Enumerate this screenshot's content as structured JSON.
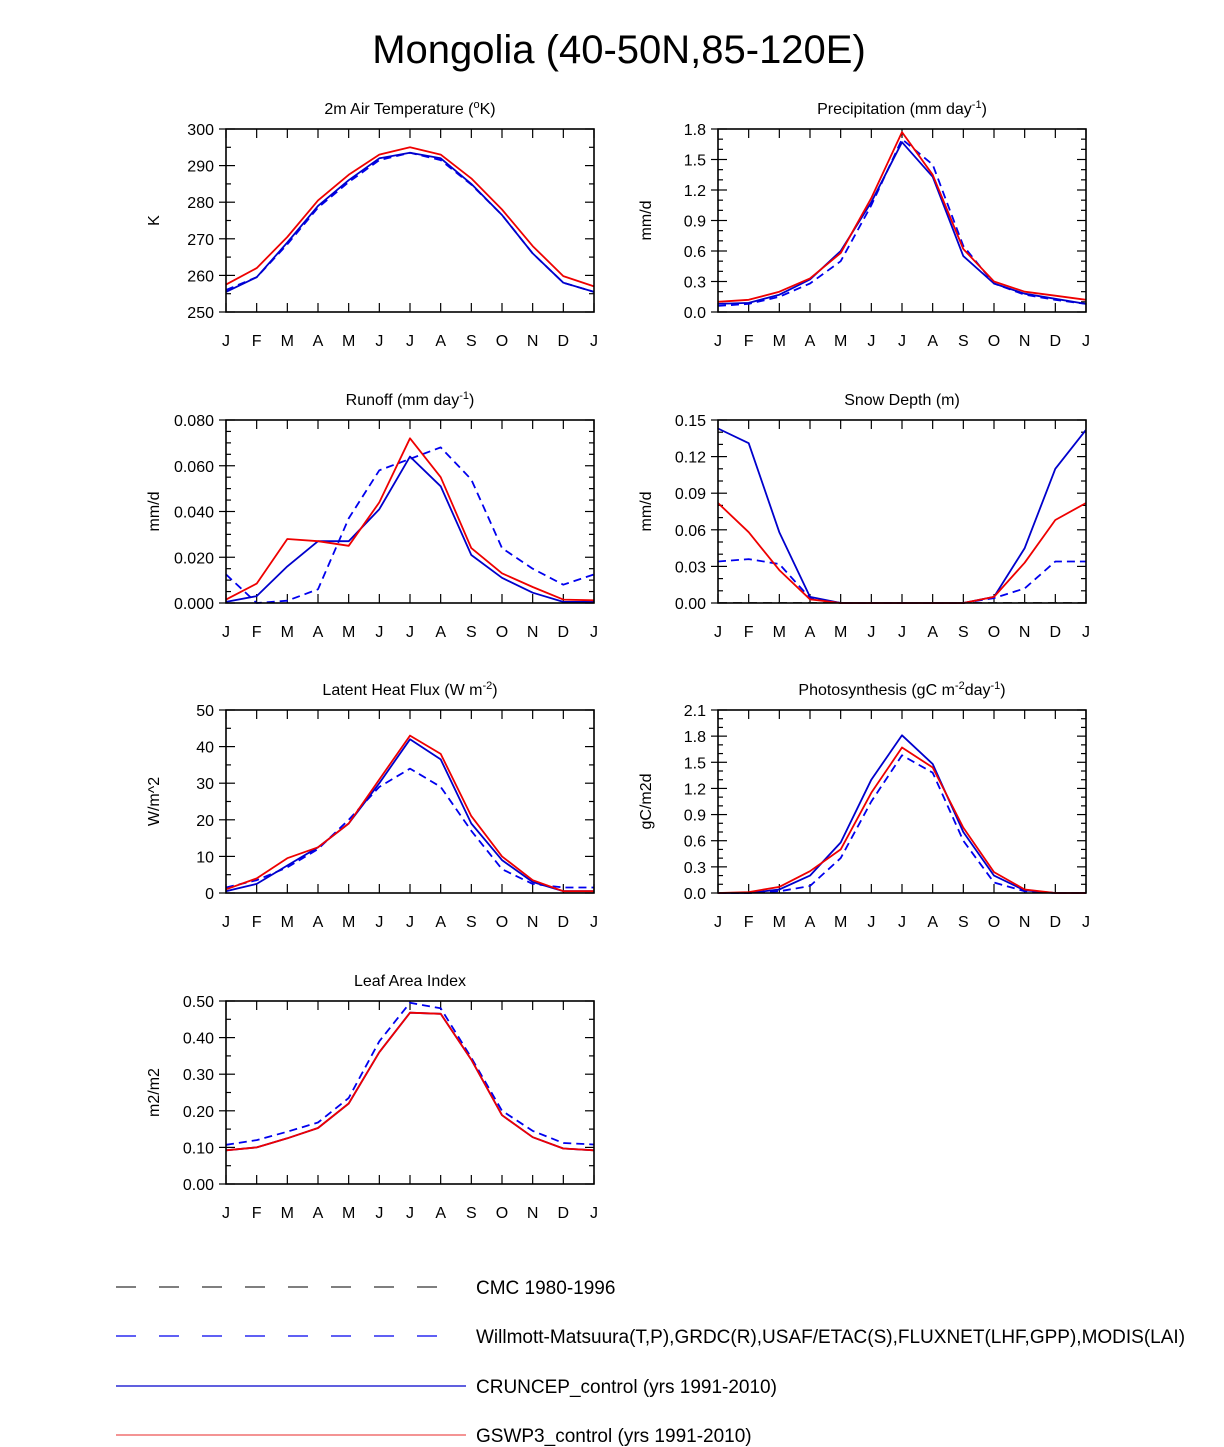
{
  "title": "Mongolia (40-50N,85-120E)",
  "months": [
    "J",
    "F",
    "M",
    "A",
    "M",
    "J",
    "J",
    "A",
    "S",
    "O",
    "N",
    "D",
    "J"
  ],
  "legend": [
    {
      "label": "CMC 1980-1996",
      "color": "#555555",
      "dash": true,
      "key": "cmc"
    },
    {
      "label": "Willmott-Matsuura(T,P),GRDC(R),USAF/ETAC(S),FLUXNET(LHF,GPP),MODIS(LAI)",
      "color": "#0000ee",
      "dash": true,
      "key": "obs"
    },
    {
      "label": "CRUNCEP_control (yrs 1991-2010)",
      "color": "#0000cc",
      "dash": false,
      "key": "cru"
    },
    {
      "label": "GSWP3_control (yrs 1991-2010)",
      "color": "#ee0000",
      "dash": false,
      "key": "gsw"
    }
  ],
  "chart_data": [
    {
      "type": "line",
      "id": "temp",
      "title_parts": [
        "2m Air Temperature (",
        "o",
        "K)"
      ],
      "ylabel": "K",
      "ylim": [
        250,
        300
      ],
      "yticks": [
        250,
        260,
        270,
        280,
        290,
        300
      ],
      "ytick_labels": [
        "250",
        "260",
        "270",
        "280",
        "290",
        "300"
      ],
      "yminor": 2,
      "series": [
        {
          "name": "Willmott-Matsuura",
          "key": "obs",
          "values": [
            256.0,
            259.5,
            268.5,
            278.5,
            285.5,
            291.5,
            293.5,
            291.5,
            284.8,
            276.5,
            266.0,
            258.0,
            255.5
          ]
        },
        {
          "name": "CRUNCEP_control",
          "key": "cru",
          "values": [
            255.5,
            259.5,
            269.0,
            279.0,
            286.0,
            292.0,
            293.5,
            292.0,
            285.0,
            276.5,
            266.0,
            258.0,
            255.5
          ]
        },
        {
          "name": "GSWP3_control",
          "key": "gsw",
          "values": [
            257.5,
            262.0,
            270.5,
            280.5,
            287.5,
            293.0,
            295.0,
            293.0,
            286.5,
            278.0,
            268.0,
            259.8,
            257.0
          ]
        }
      ]
    },
    {
      "type": "line",
      "id": "precip",
      "title_parts": [
        "Precipitation (mm day",
        "-1",
        ")"
      ],
      "ylabel": "mm/d",
      "ylim": [
        0,
        1.8
      ],
      "yticks": [
        0,
        0.3,
        0.6,
        0.9,
        1.2,
        1.5,
        1.8
      ],
      "ytick_labels": [
        "0.0",
        "0.3",
        "0.6",
        "0.9",
        "1.2",
        "1.5",
        "1.8"
      ],
      "yminor": 3,
      "series": [
        {
          "name": "Willmott-Matsuura",
          "key": "obs",
          "values": [
            0.06,
            0.08,
            0.15,
            0.28,
            0.5,
            1.05,
            1.7,
            1.45,
            0.65,
            0.28,
            0.17,
            0.12,
            0.08
          ]
        },
        {
          "name": "CRUNCEP_control",
          "key": "cru",
          "values": [
            0.08,
            0.09,
            0.17,
            0.32,
            0.6,
            1.08,
            1.67,
            1.33,
            0.55,
            0.28,
            0.18,
            0.13,
            0.08
          ]
        },
        {
          "name": "GSWP3_control",
          "key": "gsw",
          "values": [
            0.1,
            0.12,
            0.2,
            0.33,
            0.58,
            1.12,
            1.77,
            1.35,
            0.62,
            0.3,
            0.2,
            0.16,
            0.12
          ]
        }
      ]
    },
    {
      "type": "line",
      "id": "runoff",
      "title_parts": [
        "Runoff (mm day",
        "-1",
        ")"
      ],
      "ylabel": "mm/d",
      "ylim": [
        0,
        0.08
      ],
      "yticks": [
        0,
        0.02,
        0.04,
        0.06,
        0.08
      ],
      "ytick_labels": [
        "0.000",
        "0.020",
        "0.040",
        "0.060",
        "0.080"
      ],
      "yminor": 4,
      "series": [
        {
          "name": "GRDC",
          "key": "obs",
          "values": [
            0.0125,
            0.0,
            0.001,
            0.006,
            0.037,
            0.058,
            0.063,
            0.068,
            0.054,
            0.024,
            0.015,
            0.008,
            0.0125
          ]
        },
        {
          "name": "CRUNCEP_control",
          "key": "cru",
          "values": [
            0.0005,
            0.003,
            0.016,
            0.027,
            0.027,
            0.041,
            0.064,
            0.051,
            0.021,
            0.011,
            0.0045,
            0.0005,
            0.0005
          ]
        },
        {
          "name": "GSWP3_control",
          "key": "gsw",
          "values": [
            0.0015,
            0.0085,
            0.028,
            0.027,
            0.025,
            0.044,
            0.072,
            0.055,
            0.024,
            0.013,
            0.007,
            0.0015,
            0.0012
          ]
        }
      ]
    },
    {
      "type": "line",
      "id": "snow",
      "title_parts": [
        "Snow Depth (m)"
      ],
      "ylabel": "mm/d",
      "ylim": [
        0,
        0.15
      ],
      "yticks": [
        0,
        0.03,
        0.06,
        0.09,
        0.12,
        0.15
      ],
      "ytick_labels": [
        "0.00",
        "0.03",
        "0.06",
        "0.09",
        "0.12",
        "0.15"
      ],
      "yminor": 3,
      "series": [
        {
          "name": "CMC 1980-1996",
          "key": "cmc",
          "values": [
            0.0003,
            0.0003,
            0.0003,
            0.0003,
            0.0003,
            0.0003,
            0.0003,
            0.0003,
            0.0003,
            0.0003,
            0.0003,
            0.0003,
            0.0003
          ]
        },
        {
          "name": "USAF/ETAC",
          "key": "obs",
          "values": [
            0.034,
            0.036,
            0.032,
            0.004,
            0.0,
            0.0,
            0.0,
            0.0,
            0.0,
            0.004,
            0.012,
            0.034,
            0.034
          ]
        },
        {
          "name": "CRUNCEP_control",
          "key": "cru",
          "values": [
            0.143,
            0.131,
            0.058,
            0.005,
            0.0,
            0.0,
            0.0,
            0.0,
            0.0,
            0.005,
            0.045,
            0.11,
            0.142
          ]
        },
        {
          "name": "GSWP3_control",
          "key": "gsw",
          "values": [
            0.082,
            0.058,
            0.027,
            0.003,
            0.0,
            0.0,
            0.0,
            0.0,
            0.0,
            0.005,
            0.033,
            0.068,
            0.082
          ]
        }
      ]
    },
    {
      "type": "line",
      "id": "lhf",
      "title_parts": [
        "Latent Heat Flux (W m",
        "-2",
        ")"
      ],
      "ylabel": "W/m^2",
      "ylim": [
        0,
        50
      ],
      "yticks": [
        0,
        10,
        20,
        30,
        40,
        50
      ],
      "ytick_labels": [
        "0",
        "10",
        "20",
        "30",
        "40",
        "50"
      ],
      "yminor": 2,
      "series": [
        {
          "name": "FLUXNET",
          "key": "obs",
          "values": [
            1.5,
            3.5,
            7.0,
            12.0,
            20.0,
            29.0,
            34.0,
            29.0,
            17.0,
            6.5,
            2.5,
            1.5,
            1.5
          ]
        },
        {
          "name": "CRUNCEP_control",
          "key": "cru",
          "values": [
            0.5,
            2.5,
            7.5,
            12.5,
            19.0,
            30.0,
            42.0,
            36.5,
            19.0,
            9.0,
            3.0,
            0.5,
            0.5
          ]
        },
        {
          "name": "GSWP3_control",
          "key": "gsw",
          "values": [
            1.0,
            4.0,
            9.5,
            12.5,
            19.0,
            31.0,
            43.0,
            38.0,
            21.0,
            10.0,
            3.5,
            0.5,
            0.5
          ]
        }
      ]
    },
    {
      "type": "line",
      "id": "gpp",
      "title_parts": [
        "Photosynthesis (gC m",
        "-2",
        "day",
        "-1",
        ")"
      ],
      "ylabel": "gC/m2d",
      "ylim": [
        0,
        2.1
      ],
      "yticks": [
        0,
        0.3,
        0.6,
        0.9,
        1.2,
        1.5,
        1.8,
        2.1
      ],
      "ytick_labels": [
        "0.0",
        "0.3",
        "0.6",
        "0.9",
        "1.2",
        "1.5",
        "1.8",
        "2.1"
      ],
      "yminor": 3,
      "series": [
        {
          "name": "FLUXNET",
          "key": "obs",
          "values": [
            0.0,
            0.0,
            0.02,
            0.08,
            0.4,
            1.05,
            1.58,
            1.38,
            0.6,
            0.12,
            0.02,
            0.0,
            0.0
          ]
        },
        {
          "name": "CRUNCEP_control",
          "key": "cru",
          "values": [
            0.0,
            0.0,
            0.04,
            0.2,
            0.58,
            1.3,
            1.81,
            1.48,
            0.7,
            0.2,
            0.03,
            0.0,
            0.0
          ]
        },
        {
          "name": "GSWP3_control",
          "key": "gsw",
          "values": [
            0.0,
            0.01,
            0.07,
            0.25,
            0.5,
            1.15,
            1.67,
            1.44,
            0.75,
            0.24,
            0.04,
            0.0,
            0.0
          ]
        }
      ]
    },
    {
      "type": "line",
      "id": "lai",
      "title_parts": [
        "Leaf Area Index"
      ],
      "ylabel": "m2/m2",
      "ylim": [
        0,
        0.5
      ],
      "yticks": [
        0,
        0.1,
        0.2,
        0.3,
        0.4,
        0.5
      ],
      "ytick_labels": [
        "0.00",
        "0.10",
        "0.20",
        "0.30",
        "0.40",
        "0.50"
      ],
      "yminor": 2,
      "series": [
        {
          "name": "MODIS",
          "key": "obs",
          "values": [
            0.107,
            0.12,
            0.143,
            0.168,
            0.235,
            0.39,
            0.495,
            0.48,
            0.345,
            0.2,
            0.145,
            0.112,
            0.108
          ]
        },
        {
          "name": "CRUNCEP_control",
          "key": "cru",
          "values": [
            0.092,
            0.1,
            0.125,
            0.153,
            0.22,
            0.36,
            0.468,
            0.465,
            0.34,
            0.188,
            0.128,
            0.097,
            0.092
          ]
        },
        {
          "name": "GSWP3_control",
          "key": "gsw",
          "values": [
            0.092,
            0.1,
            0.125,
            0.153,
            0.22,
            0.36,
            0.468,
            0.465,
            0.34,
            0.188,
            0.128,
            0.097,
            0.092
          ]
        }
      ]
    }
  ]
}
